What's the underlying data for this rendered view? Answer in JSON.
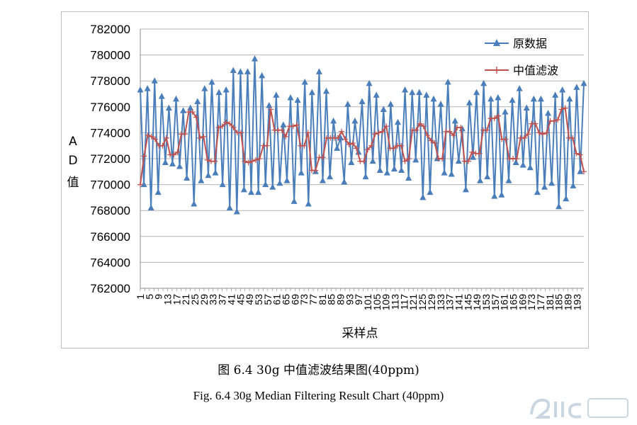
{
  "chart_data": {
    "type": "line",
    "title": "",
    "xlabel": "采样点",
    "ylabel": "AD值",
    "ylim": [
      762000,
      782000
    ],
    "yticks": [
      762000,
      764000,
      766000,
      768000,
      770000,
      772000,
      774000,
      776000,
      778000,
      780000,
      782000
    ],
    "xrange": [
      1,
      196
    ],
    "xticks": [
      1,
      5,
      9,
      13,
      17,
      21,
      25,
      29,
      33,
      37,
      41,
      45,
      49,
      53,
      57,
      61,
      65,
      69,
      73,
      77,
      81,
      85,
      89,
      93,
      97,
      101,
      105,
      109,
      113,
      117,
      121,
      125,
      129,
      133,
      137,
      141,
      145,
      149,
      153,
      157,
      161,
      165,
      169,
      173,
      177,
      181,
      185,
      189,
      193
    ],
    "legend_position": "top-right",
    "series": [
      {
        "name": "原数据",
        "color": "#4a7ebb",
        "marker": "triangle",
        "values": [
          777300,
          770000,
          777400,
          768200,
          778000,
          769400,
          776800,
          771700,
          775900,
          771600,
          776600,
          771400,
          775700,
          770500,
          775900,
          768500,
          776400,
          770300,
          777400,
          770700,
          777900,
          770900,
          777100,
          770000,
          777300,
          768200,
          778800,
          767900,
          778700,
          769600,
          778700,
          769400,
          779700,
          769400,
          778400,
          770000,
          776100,
          769800,
          776900,
          770100,
          774600,
          770300,
          776700,
          768700,
          776500,
          770900,
          777900,
          768500,
          777100,
          771000,
          778700,
          770300,
          777200,
          770600,
          774900,
          772800,
          773600,
          770200,
          776200,
          771700,
          774900,
          772500,
          776400,
          770600,
          777800,
          771800,
          776900,
          771100,
          775800,
          770900,
          776200,
          771200,
          774800,
          771100,
          777300,
          770500,
          777100,
          771900,
          777100,
          769000,
          776900,
          769400,
          776600,
          772000,
          776200,
          770900,
          777900,
          770800,
          774900,
          771800,
          774300,
          769600,
          776300,
          772100,
          777100,
          770300,
          777800,
          770600,
          776600,
          769100,
          776700,
          769200,
          775600,
          770300,
          776500,
          771700,
          777400,
          771500,
          775900,
          771300,
          776600,
          769400,
          776600,
          769800,
          775500,
          770100,
          776900,
          768300,
          777300,
          768900,
          776600,
          769900,
          777500,
          771000,
          777800
        ]
      },
      {
        "name": "中值滤波",
        "color": "#c0504d",
        "marker": "plus",
        "values": [
          770000,
          772200,
          773800,
          773700,
          773500,
          773000,
          773000,
          773600,
          772300,
          772300,
          772500,
          773900,
          773900,
          775600,
          775600,
          775200,
          773600,
          773700,
          771900,
          771800,
          771800,
          774400,
          774500,
          774800,
          774700,
          774400,
          774000,
          774000,
          771800,
          771700,
          771800,
          771900,
          772000,
          773000,
          773000,
          775800,
          774200,
          774200,
          774200,
          773700,
          774500,
          774500,
          774600,
          773000,
          773000,
          774000,
          771100,
          771100,
          772100,
          772100,
          773600,
          773600,
          773600,
          773600,
          774100,
          773500,
          773100,
          773200,
          772800,
          771800,
          771800,
          772700,
          773000,
          773900,
          774000,
          774100,
          774500,
          772800,
          772800,
          773000,
          773000,
          771800,
          772000,
          774200,
          774200,
          774700,
          774500,
          773800,
          773400,
          773200,
          772000,
          772000,
          774100,
          774100,
          773800,
          774400,
          774400,
          771800,
          771800,
          772500,
          772400,
          772400,
          774200,
          774200,
          775100,
          775100,
          775300,
          773500,
          773500,
          772000,
          772000,
          772000,
          773600,
          773600,
          773900,
          774700,
          774700,
          774000,
          773900,
          774000,
          774900,
          774900,
          775000,
          775800,
          775900,
          773600,
          773600,
          772400,
          772300,
          771000
        ]
      }
    ]
  },
  "labels": {
    "ylabel_chars": [
      "A",
      "D",
      "值"
    ],
    "caption_cn": "图 6.4 30g 中值滤波结果图(40ppm)",
    "caption_en": "Fig. 6.4 30g Median Filtering Result Chart (40ppm)"
  }
}
